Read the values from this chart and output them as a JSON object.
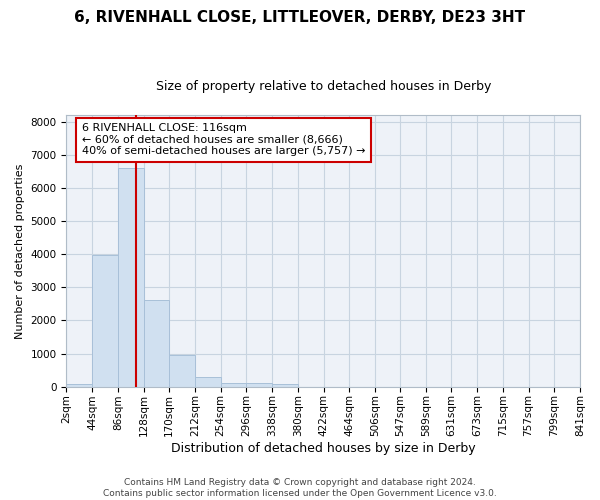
{
  "title_line1": "6, RIVENHALL CLOSE, LITTLEOVER, DERBY, DE23 3HT",
  "title_line2": "Size of property relative to detached houses in Derby",
  "xlabel": "Distribution of detached houses by size in Derby",
  "ylabel": "Number of detached properties",
  "footer_line1": "Contains HM Land Registry data © Crown copyright and database right 2024.",
  "footer_line2": "Contains public sector information licensed under the Open Government Licence v3.0.",
  "annotation_line1": "6 RIVENHALL CLOSE: 116sqm",
  "annotation_line2": "← 60% of detached houses are smaller (8,666)",
  "annotation_line3": "40% of semi-detached houses are larger (5,757) →",
  "property_size": 116,
  "bar_edges": [
    2,
    44,
    86,
    128,
    170,
    212,
    254,
    296,
    338,
    380,
    422,
    464,
    506,
    547,
    589,
    631,
    673,
    715,
    757,
    799,
    841
  ],
  "bar_heights": [
    80,
    3980,
    6600,
    2620,
    960,
    305,
    120,
    105,
    85,
    0,
    0,
    0,
    0,
    0,
    0,
    0,
    0,
    0,
    0,
    0
  ],
  "bar_color": "#d0e0f0",
  "bar_edgecolor": "#a8c0d8",
  "redline_color": "#cc0000",
  "annotation_box_edgecolor": "#cc0000",
  "annotation_box_facecolor": "#ffffff",
  "background_color": "#eef2f8",
  "grid_color": "#c8d4e0",
  "ylim": [
    0,
    8200
  ],
  "yticks": [
    0,
    1000,
    2000,
    3000,
    4000,
    5000,
    6000,
    7000,
    8000
  ],
  "title_fontsize": 11,
  "subtitle_fontsize": 9,
  "ylabel_fontsize": 8,
  "xlabel_fontsize": 9,
  "tick_fontsize": 7.5,
  "footer_fontsize": 6.5,
  "annotation_fontsize": 8
}
